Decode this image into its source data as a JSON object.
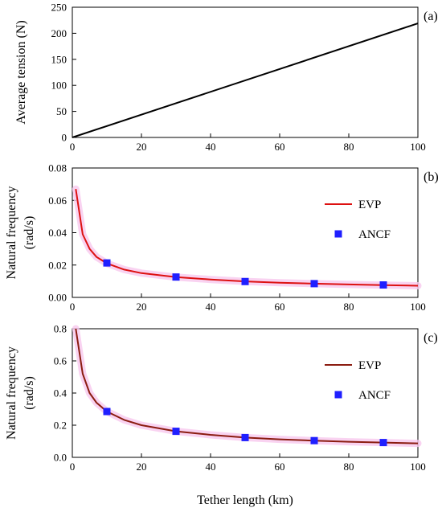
{
  "chart_data": [
    {
      "type": "line",
      "panel_label": "(a)",
      "xlabel": "",
      "ylabel_lines": [
        "Average tension (N)"
      ],
      "xlim": [
        0,
        100
      ],
      "ylim": [
        0,
        250
      ],
      "x_ticks": [
        "0",
        "20",
        "40",
        "60",
        "80",
        "100"
      ],
      "y_ticks": [
        "0",
        "50",
        "100",
        "150",
        "200",
        "250"
      ],
      "series": [
        {
          "line_color": "#000000",
          "x": [
            0,
            100
          ],
          "y": [
            0,
            219
          ]
        }
      ]
    },
    {
      "type": "line",
      "panel_label": "(b)",
      "xlabel": "",
      "ylabel_lines": [
        "Natural frequency",
        "(rad/s)"
      ],
      "xlim": [
        0,
        100
      ],
      "ylim": [
        0,
        0.08
      ],
      "x_ticks": [
        "0",
        "20",
        "40",
        "60",
        "80",
        "100"
      ],
      "y_ticks": [
        "0.00",
        "0.02",
        "0.04",
        "0.06",
        "0.08"
      ],
      "legend": {
        "position": "top-right",
        "entries": [
          "EVP",
          "ANCF"
        ]
      },
      "series": [
        {
          "name": "EVP",
          "line_color": "#dd1111",
          "band_color": "#f7c8ee",
          "x": [
            1,
            3,
            5,
            7,
            10,
            15,
            20,
            30,
            40,
            50,
            60,
            70,
            80,
            90,
            100
          ],
          "y": [
            0.067,
            0.039,
            0.03,
            0.025,
            0.021,
            0.0172,
            0.015,
            0.0125,
            0.0111,
            0.0099,
            0.0091,
            0.0085,
            0.008,
            0.0076,
            0.0072
          ]
        },
        {
          "name": "ANCF",
          "marker_color": "#1f1fff",
          "x": [
            10,
            30,
            50,
            70,
            90
          ],
          "y": [
            0.0213,
            0.0126,
            0.0098,
            0.0085,
            0.0077
          ]
        }
      ]
    },
    {
      "type": "line",
      "panel_label": "(c)",
      "xlabel": "Tether length (km)",
      "ylabel_lines": [
        "Natural frequency",
        "(rad/s)"
      ],
      "xlim": [
        0,
        100
      ],
      "ylim": [
        0,
        0.8
      ],
      "x_ticks": [
        "0",
        "20",
        "40",
        "60",
        "80",
        "100"
      ],
      "y_ticks": [
        "0.0",
        "0.2",
        "0.4",
        "0.6",
        "0.8"
      ],
      "legend": {
        "position": "top-right",
        "entries": [
          "EVP",
          "ANCF"
        ]
      },
      "series": [
        {
          "name": "EVP",
          "line_color": "#8b1c10",
          "band_color": "#f7c8ee",
          "x": [
            1,
            3,
            5,
            7,
            10,
            15,
            20,
            30,
            40,
            50,
            60,
            70,
            80,
            90,
            100
          ],
          "y": [
            0.8,
            0.52,
            0.4,
            0.34,
            0.285,
            0.233,
            0.2,
            0.162,
            0.14,
            0.123,
            0.112,
            0.104,
            0.097,
            0.092,
            0.087
          ]
        },
        {
          "name": "ANCF",
          "marker_color": "#1f1fff",
          "x": [
            10,
            30,
            50,
            70,
            90
          ],
          "y": [
            0.285,
            0.162,
            0.123,
            0.104,
            0.092
          ]
        }
      ]
    }
  ]
}
